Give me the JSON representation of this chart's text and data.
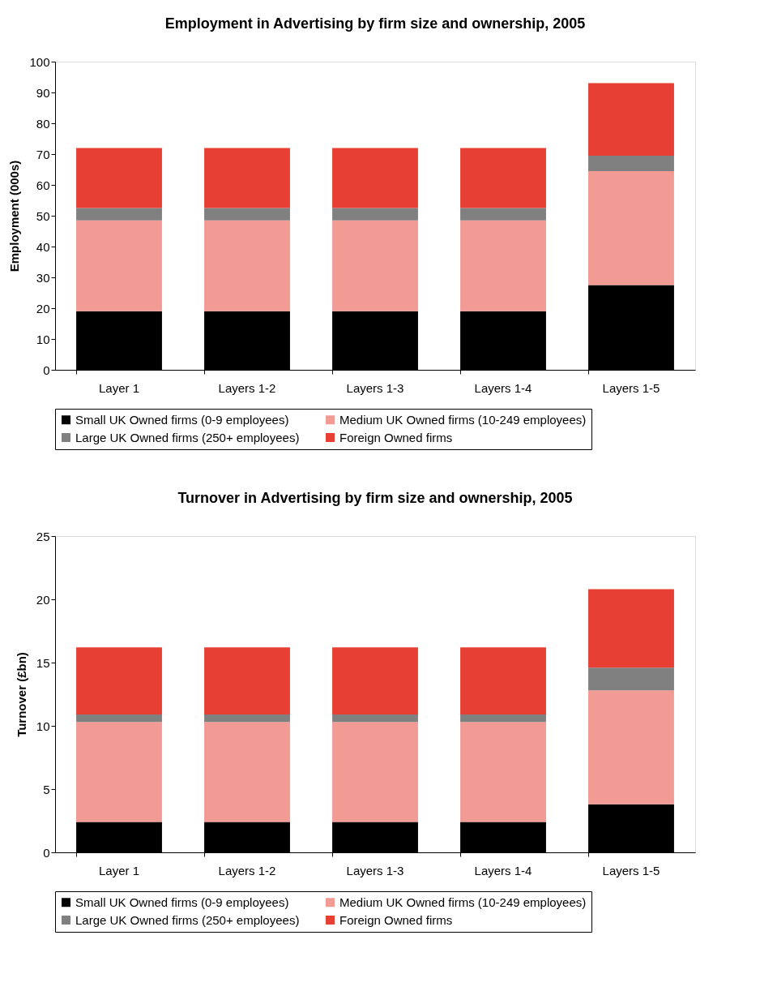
{
  "chart_data": [
    {
      "type": "bar",
      "stacked": true,
      "title": "Employment in Advertising by firm size and ownership, 2005",
      "ylabel": "Employment (000s)",
      "categories": [
        "Layer 1",
        "Layers 1-2",
        "Layers 1-3",
        "Layers 1-4",
        "Layers 1-5"
      ],
      "ylim": [
        0,
        100
      ],
      "yticks": [
        0,
        10,
        20,
        30,
        40,
        50,
        60,
        70,
        80,
        90,
        100
      ],
      "grid": false,
      "legend": "bottom",
      "series": [
        {
          "name": "Small UK Owned firms (0-9 employees)",
          "color": "#000000",
          "values": [
            19,
            19,
            19,
            19,
            27.5
          ]
        },
        {
          "name": "Medium UK Owned firms (10-249 employees)",
          "color": "#f29a94",
          "values": [
            29.5,
            29.5,
            29.5,
            29.5,
            37
          ]
        },
        {
          "name": "Large UK Owned firms (250+ employees)",
          "color": "#808080",
          "values": [
            4,
            4,
            4,
            4,
            5
          ]
        },
        {
          "name": "Foreign Owned firms",
          "color": "#e83f34",
          "values": [
            19.5,
            19.5,
            19.5,
            19.5,
            23.5
          ]
        }
      ]
    },
    {
      "type": "bar",
      "stacked": true,
      "title": "Turnover in Advertising by firm size and ownership, 2005",
      "ylabel": "Turnover (£bn)",
      "categories": [
        "Layer 1",
        "Layers 1-2",
        "Layers 1-3",
        "Layers 1-4",
        "Layers 1-5"
      ],
      "ylim": [
        0,
        25
      ],
      "yticks": [
        0,
        5,
        10,
        15,
        20,
        25
      ],
      "grid": false,
      "legend": "bottom",
      "series": [
        {
          "name": "Small UK Owned firms (0-9 employees)",
          "color": "#000000",
          "values": [
            2.4,
            2.4,
            2.4,
            2.4,
            3.8
          ]
        },
        {
          "name": "Medium UK Owned firms (10-249 employees)",
          "color": "#f29a94",
          "values": [
            7.9,
            7.9,
            7.9,
            7.9,
            9.0
          ]
        },
        {
          "name": "Large UK Owned firms (250+ employees)",
          "color": "#808080",
          "values": [
            0.6,
            0.6,
            0.6,
            0.6,
            1.8
          ]
        },
        {
          "name": "Foreign Owned firms",
          "color": "#e83f34",
          "values": [
            5.3,
            5.3,
            5.3,
            5.3,
            6.2
          ]
        }
      ]
    }
  ]
}
